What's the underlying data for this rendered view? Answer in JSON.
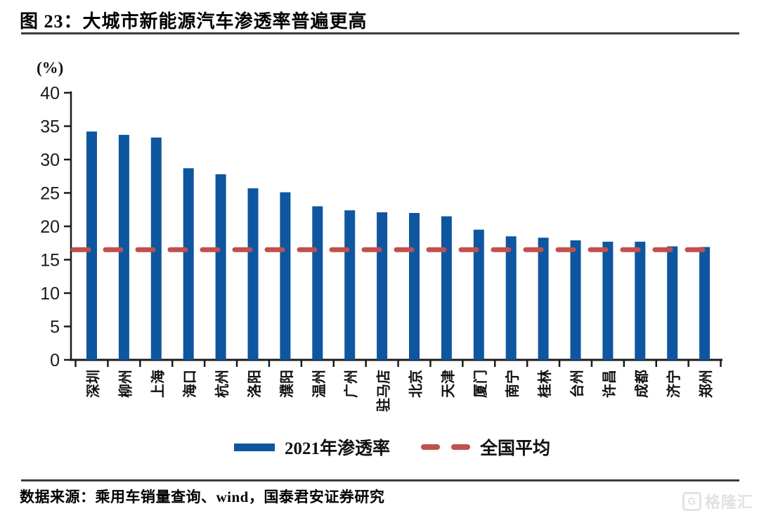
{
  "header": {
    "figure_title": "图 23：大城市新能源汽车渗透率普遍更高"
  },
  "chart_data": {
    "type": "bar",
    "title": "大城市新能源汽车渗透率普遍更高",
    "ylabel": "(%)",
    "xlabel": "",
    "ylim": [
      0,
      40
    ],
    "ytick_step": 5,
    "grid": false,
    "legend_position": "bottom",
    "categories": [
      "深圳",
      "柳州",
      "上海",
      "海口",
      "杭州",
      "洛阳",
      "濮阳",
      "温州",
      "广州",
      "驻马店",
      "北京",
      "天津",
      "厦门",
      "南宁",
      "桂林",
      "台州",
      "许昌",
      "成都",
      "济宁",
      "郑州"
    ],
    "series": [
      {
        "name": "2021年渗透率",
        "type": "bar",
        "color": "#0E56A0",
        "values": [
          34.2,
          33.7,
          33.3,
          28.7,
          27.8,
          25.7,
          25.1,
          23.0,
          22.4,
          22.1,
          22.0,
          21.5,
          19.5,
          18.5,
          18.3,
          17.9,
          17.7,
          17.7,
          17.0,
          16.9
        ]
      },
      {
        "name": "全国平均",
        "type": "dashed-line",
        "color": "#C0504D",
        "value": 16.5
      }
    ]
  },
  "footer": {
    "source_text": "数据来源：乘用车销量查询、wind，国泰君安证券研究",
    "watermark_icon": "G",
    "watermark_text": "格隆汇"
  }
}
